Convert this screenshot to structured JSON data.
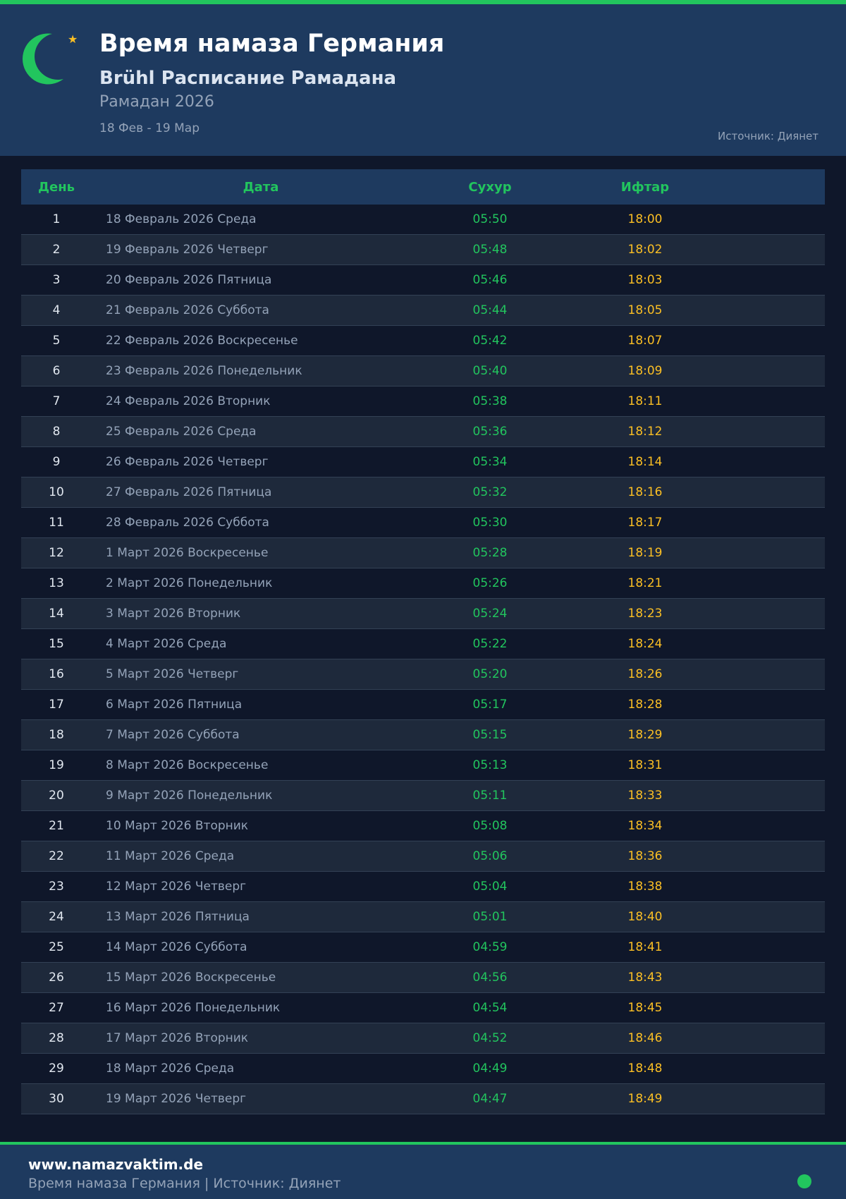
{
  "header": {
    "title": "Время намаза Германия",
    "subtitle": "Brühl Расписание Рамадана",
    "year": "Рамадан 2026",
    "range": "18 Фев - 19 Мар",
    "source": "Источник: Диянет"
  },
  "colors": {
    "accent": "#22c55e",
    "iftar": "#fbbf24",
    "header_bg": "#1e3a5f",
    "page_bg": "#0f172a"
  },
  "table": {
    "columns": [
      "День",
      "Дата",
      "Сухур",
      "Ифтар"
    ],
    "rows": [
      [
        "1",
        "18 Февраль 2026 Среда",
        "05:50",
        "18:00"
      ],
      [
        "2",
        "19 Февраль 2026 Четверг",
        "05:48",
        "18:02"
      ],
      [
        "3",
        "20 Февраль 2026 Пятница",
        "05:46",
        "18:03"
      ],
      [
        "4",
        "21 Февраль 2026 Суббота",
        "05:44",
        "18:05"
      ],
      [
        "5",
        "22 Февраль 2026 Воскресенье",
        "05:42",
        "18:07"
      ],
      [
        "6",
        "23 Февраль 2026 Понедельник",
        "05:40",
        "18:09"
      ],
      [
        "7",
        "24 Февраль 2026 Вторник",
        "05:38",
        "18:11"
      ],
      [
        "8",
        "25 Февраль 2026 Среда",
        "05:36",
        "18:12"
      ],
      [
        "9",
        "26 Февраль 2026 Четверг",
        "05:34",
        "18:14"
      ],
      [
        "10",
        "27 Февраль 2026 Пятница",
        "05:32",
        "18:16"
      ],
      [
        "11",
        "28 Февраль 2026 Суббота",
        "05:30",
        "18:17"
      ],
      [
        "12",
        "1 Март 2026 Воскресенье",
        "05:28",
        "18:19"
      ],
      [
        "13",
        "2 Март 2026 Понедельник",
        "05:26",
        "18:21"
      ],
      [
        "14",
        "3 Март 2026 Вторник",
        "05:24",
        "18:23"
      ],
      [
        "15",
        "4 Март 2026 Среда",
        "05:22",
        "18:24"
      ],
      [
        "16",
        "5 Март 2026 Четверг",
        "05:20",
        "18:26"
      ],
      [
        "17",
        "6 Март 2026 Пятница",
        "05:17",
        "18:28"
      ],
      [
        "18",
        "7 Март 2026 Суббота",
        "05:15",
        "18:29"
      ],
      [
        "19",
        "8 Март 2026 Воскресенье",
        "05:13",
        "18:31"
      ],
      [
        "20",
        "9 Март 2026 Понедельник",
        "05:11",
        "18:33"
      ],
      [
        "21",
        "10 Март 2026 Вторник",
        "05:08",
        "18:34"
      ],
      [
        "22",
        "11 Март 2026 Среда",
        "05:06",
        "18:36"
      ],
      [
        "23",
        "12 Март 2026 Четверг",
        "05:04",
        "18:38"
      ],
      [
        "24",
        "13 Март 2026 Пятница",
        "05:01",
        "18:40"
      ],
      [
        "25",
        "14 Март 2026 Суббота",
        "04:59",
        "18:41"
      ],
      [
        "26",
        "15 Март 2026 Воскресенье",
        "04:56",
        "18:43"
      ],
      [
        "27",
        "16 Март 2026 Понедельник",
        "04:54",
        "18:45"
      ],
      [
        "28",
        "17 Март 2026 Вторник",
        "04:52",
        "18:46"
      ],
      [
        "29",
        "18 Март 2026 Среда",
        "04:49",
        "18:48"
      ],
      [
        "30",
        "19 Март 2026 Четверг",
        "04:47",
        "18:49"
      ]
    ]
  },
  "footer": {
    "site": "www.namazvaktim.de",
    "text": "Время намаза Германия | Источник: Диянет"
  }
}
